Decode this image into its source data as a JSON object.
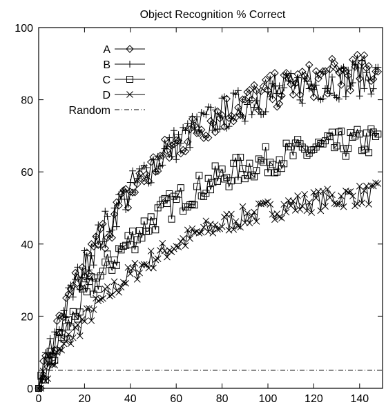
{
  "chart_data": {
    "type": "line",
    "title": "Object Recognition % Correct",
    "xlabel": "",
    "ylabel": "",
    "xlim": [
      0,
      150
    ],
    "ylim": [
      0,
      100
    ],
    "x_ticks": [
      "0",
      "20",
      "40",
      "60",
      "80",
      "100",
      "120",
      "140"
    ],
    "y_ticks": [
      "0",
      "20",
      "40",
      "60",
      "80",
      "100"
    ],
    "grid": false,
    "legend_position": "top-left",
    "series": [
      {
        "name": "A",
        "marker": "diamond",
        "curve": {
          "start": 0,
          "max": 92,
          "k": 0.022
        },
        "noise": 5,
        "x": [
          0,
          148
        ]
      },
      {
        "name": "B",
        "marker": "plus",
        "curve": {
          "start": 0,
          "max": 89,
          "k": 0.024
        },
        "noise": 5,
        "x": [
          0,
          148
        ]
      },
      {
        "name": "C",
        "marker": "square",
        "curve": {
          "start": 0,
          "max": 72,
          "k": 0.021
        },
        "noise": 4,
        "x": [
          0,
          148
        ]
      },
      {
        "name": "D",
        "marker": "x",
        "curve": {
          "start": 0,
          "max": 57,
          "k": 0.02
        },
        "noise": 3,
        "x": [
          0,
          148
        ]
      },
      {
        "name": "Random",
        "style": "dash-dot",
        "values": [
          5,
          5
        ],
        "x": [
          0,
          150
        ]
      }
    ]
  }
}
